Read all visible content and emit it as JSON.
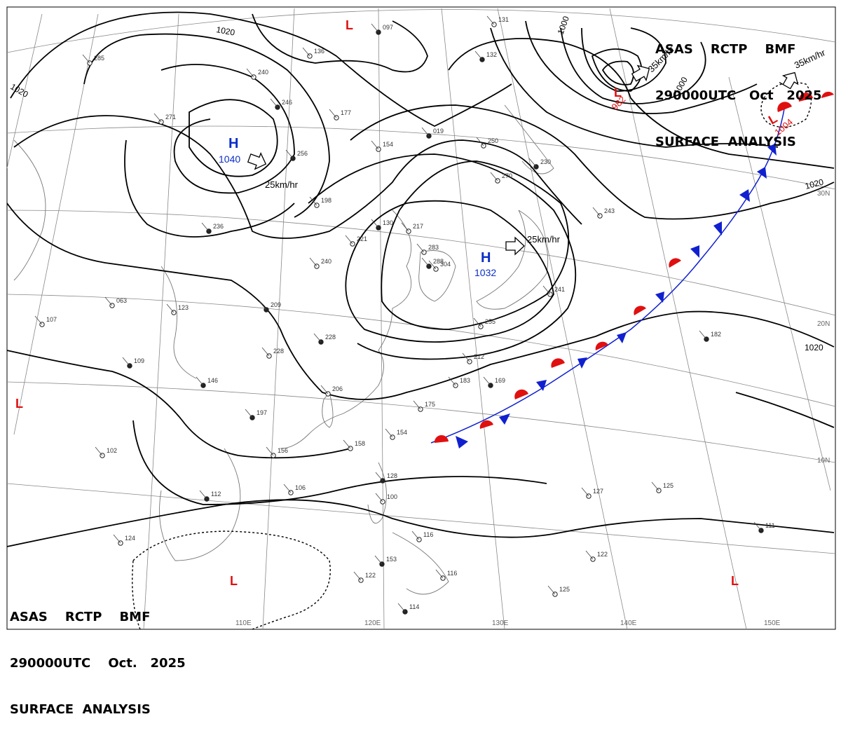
{
  "header": {
    "line1": "ASAS    RCTP    BMF",
    "line2": "290000UTC   Oct   2025",
    "line3": "SURFACE  ANALYSIS"
  },
  "footer": {
    "line1": "ASAS    RCTP    BMF",
    "line2": "290000UTC    Oct.   2025",
    "line3": "SURFACE  ANALYSIS"
  },
  "isobar_labels": [
    "1020",
    "1020",
    "1000",
    "1000",
    "1020",
    "1020"
  ],
  "highs": [
    {
      "symbol": "H",
      "pressure": "1040",
      "motion": "25km/hr"
    },
    {
      "symbol": "H",
      "pressure": "1032",
      "motion": "25km/hr"
    }
  ],
  "lows": [
    {
      "symbol": "L",
      "pressure": "982",
      "motion": "35km/hr"
    },
    {
      "symbol": "L",
      "pressure": "1004",
      "motion": "35km/hr"
    },
    {
      "symbol": "L",
      "pressure": ""
    },
    {
      "symbol": "L",
      "pressure": ""
    },
    {
      "symbol": "L",
      "pressure": ""
    },
    {
      "symbol": "L",
      "pressure": ""
    }
  ],
  "longitude_labels": [
    "110E",
    "120E",
    "130E",
    "140E",
    "150E"
  ],
  "latitude_labels": [
    "30N",
    "20N",
    "10N"
  ],
  "station_pressures": [
    "097",
    "136",
    "240",
    "246",
    "177",
    "154",
    "019",
    "250",
    "131",
    "132",
    "285",
    "271",
    "256",
    "198",
    "221",
    "130",
    "217",
    "283",
    "288",
    "304",
    "270",
    "230",
    "243",
    "241",
    "236",
    "063",
    "123",
    "209",
    "240",
    "228",
    "228",
    "212",
    "183",
    "169",
    "255",
    "206",
    "146",
    "175",
    "154",
    "197",
    "156",
    "158",
    "128",
    "100",
    "106",
    "112",
    "124",
    "116",
    "153",
    "122",
    "116",
    "114",
    "127",
    "125",
    "111",
    "122",
    "107",
    "109",
    "102",
    "125",
    "182"
  ],
  "colors": {
    "isobar": "#000000",
    "high": "#0a2ec8",
    "low": "#e01010",
    "cold_front": "#1020d0",
    "warm_front": "#e01010",
    "grid": "#808080",
    "station": "#555555"
  }
}
